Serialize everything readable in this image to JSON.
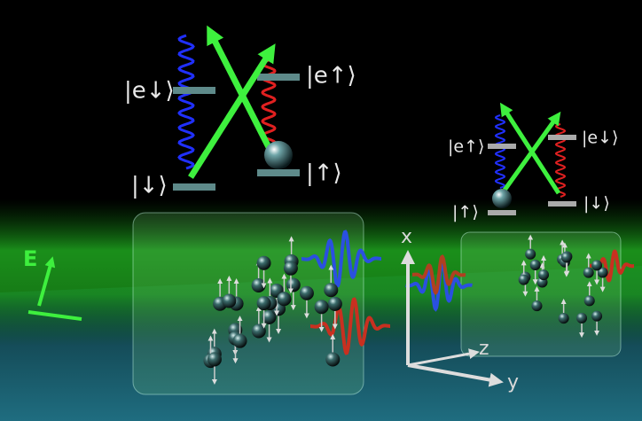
{
  "diagrams": [
    {
      "levels": {
        "excited_left": "|e↓⟩",
        "excited_right": "|e↑⟩",
        "ground_left": "|↓⟩",
        "ground_right": "|↑⟩"
      }
    },
    {
      "levels": {
        "excited_left": "|e↑⟩",
        "excited_right": "|e↓⟩",
        "ground_left": "|↑⟩",
        "ground_right": "|↓⟩"
      }
    }
  ],
  "field_label": "E",
  "axes": {
    "x": "x",
    "y": "y",
    "z": "z"
  }
}
